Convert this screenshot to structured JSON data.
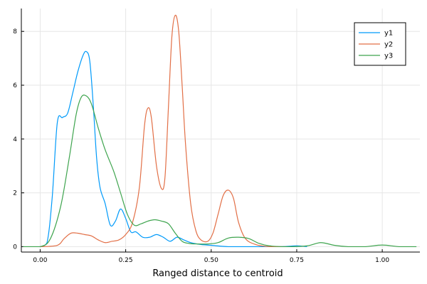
{
  "chart_data": {
    "type": "line",
    "title": "",
    "xlabel": "Ranged distance to centroid",
    "ylabel": "",
    "xlim": [
      -0.055,
      1.11
    ],
    "ylim": [
      -0.2,
      8.85
    ],
    "xticks": [
      0.0,
      0.25,
      0.5,
      0.75,
      1.0
    ],
    "xtick_labels": [
      "0.00",
      "0.25",
      "0.50",
      "0.75",
      "1.00"
    ],
    "yticks": [
      0,
      2,
      4,
      6,
      8
    ],
    "ytick_labels": [
      "0",
      "2",
      "4",
      "6",
      "8"
    ],
    "grid": true,
    "legend_position": "top-right",
    "series": [
      {
        "name": "y1",
        "color": "#009AFA",
        "points": [
          [
            0.0,
            0.0
          ],
          [
            0.02,
            0.15
          ],
          [
            0.035,
            1.8
          ],
          [
            0.05,
            4.6
          ],
          [
            0.065,
            4.8
          ],
          [
            0.08,
            4.95
          ],
          [
            0.095,
            5.7
          ],
          [
            0.11,
            6.5
          ],
          [
            0.125,
            7.1
          ],
          [
            0.135,
            7.25
          ],
          [
            0.145,
            6.9
          ],
          [
            0.155,
            5.3
          ],
          [
            0.165,
            3.3
          ],
          [
            0.175,
            2.2
          ],
          [
            0.19,
            1.6
          ],
          [
            0.205,
            0.8
          ],
          [
            0.22,
            0.95
          ],
          [
            0.235,
            1.4
          ],
          [
            0.25,
            1.05
          ],
          [
            0.265,
            0.55
          ],
          [
            0.28,
            0.55
          ],
          [
            0.3,
            0.35
          ],
          [
            0.32,
            0.35
          ],
          [
            0.34,
            0.45
          ],
          [
            0.36,
            0.35
          ],
          [
            0.38,
            0.2
          ],
          [
            0.4,
            0.35
          ],
          [
            0.42,
            0.25
          ],
          [
            0.44,
            0.15
          ],
          [
            0.47,
            0.08
          ],
          [
            0.5,
            0.05
          ],
          [
            0.55,
            0.0
          ],
          [
            0.6,
            0.0
          ],
          [
            0.7,
            0.0
          ],
          [
            0.75,
            0.03
          ],
          [
            0.78,
            0.0
          ]
        ]
      },
      {
        "name": "y2",
        "color": "#E26F46",
        "points": [
          [
            0.0,
            0.0
          ],
          [
            0.05,
            0.05
          ],
          [
            0.07,
            0.3
          ],
          [
            0.09,
            0.5
          ],
          [
            0.11,
            0.5
          ],
          [
            0.13,
            0.45
          ],
          [
            0.15,
            0.4
          ],
          [
            0.17,
            0.25
          ],
          [
            0.19,
            0.15
          ],
          [
            0.21,
            0.2
          ],
          [
            0.23,
            0.25
          ],
          [
            0.25,
            0.45
          ],
          [
            0.27,
            0.9
          ],
          [
            0.29,
            2.2
          ],
          [
            0.305,
            4.5
          ],
          [
            0.315,
            5.15
          ],
          [
            0.325,
            4.8
          ],
          [
            0.34,
            3.0
          ],
          [
            0.355,
            2.15
          ],
          [
            0.365,
            2.6
          ],
          [
            0.375,
            5.2
          ],
          [
            0.385,
            7.8
          ],
          [
            0.395,
            8.6
          ],
          [
            0.405,
            8.0
          ],
          [
            0.415,
            6.0
          ],
          [
            0.425,
            3.8
          ],
          [
            0.44,
            1.6
          ],
          [
            0.455,
            0.6
          ],
          [
            0.47,
            0.25
          ],
          [
            0.49,
            0.2
          ],
          [
            0.505,
            0.5
          ],
          [
            0.52,
            1.2
          ],
          [
            0.535,
            1.9
          ],
          [
            0.55,
            2.1
          ],
          [
            0.565,
            1.8
          ],
          [
            0.58,
            0.9
          ],
          [
            0.6,
            0.3
          ],
          [
            0.63,
            0.08
          ],
          [
            0.67,
            0.0
          ],
          [
            0.72,
            0.0
          ]
        ]
      },
      {
        "name": "y3",
        "color": "#3EA44E",
        "points": [
          [
            -0.05,
            0.0
          ],
          [
            0.0,
            0.0
          ],
          [
            0.03,
            0.3
          ],
          [
            0.06,
            1.5
          ],
          [
            0.085,
            3.3
          ],
          [
            0.105,
            4.9
          ],
          [
            0.12,
            5.55
          ],
          [
            0.135,
            5.6
          ],
          [
            0.15,
            5.3
          ],
          [
            0.17,
            4.4
          ],
          [
            0.19,
            3.6
          ],
          [
            0.215,
            2.8
          ],
          [
            0.235,
            2.0
          ],
          [
            0.255,
            1.2
          ],
          [
            0.275,
            0.8
          ],
          [
            0.295,
            0.85
          ],
          [
            0.315,
            0.95
          ],
          [
            0.335,
            1.0
          ],
          [
            0.355,
            0.95
          ],
          [
            0.375,
            0.85
          ],
          [
            0.395,
            0.5
          ],
          [
            0.415,
            0.2
          ],
          [
            0.435,
            0.12
          ],
          [
            0.46,
            0.1
          ],
          [
            0.49,
            0.1
          ],
          [
            0.52,
            0.15
          ],
          [
            0.55,
            0.32
          ],
          [
            0.58,
            0.35
          ],
          [
            0.61,
            0.3
          ],
          [
            0.64,
            0.12
          ],
          [
            0.67,
            0.03
          ],
          [
            0.72,
            0.0
          ],
          [
            0.78,
            0.03
          ],
          [
            0.82,
            0.15
          ],
          [
            0.86,
            0.05
          ],
          [
            0.9,
            0.0
          ],
          [
            0.95,
            0.0
          ],
          [
            1.0,
            0.06
          ],
          [
            1.05,
            0.0
          ],
          [
            1.1,
            0.0
          ]
        ]
      }
    ]
  }
}
